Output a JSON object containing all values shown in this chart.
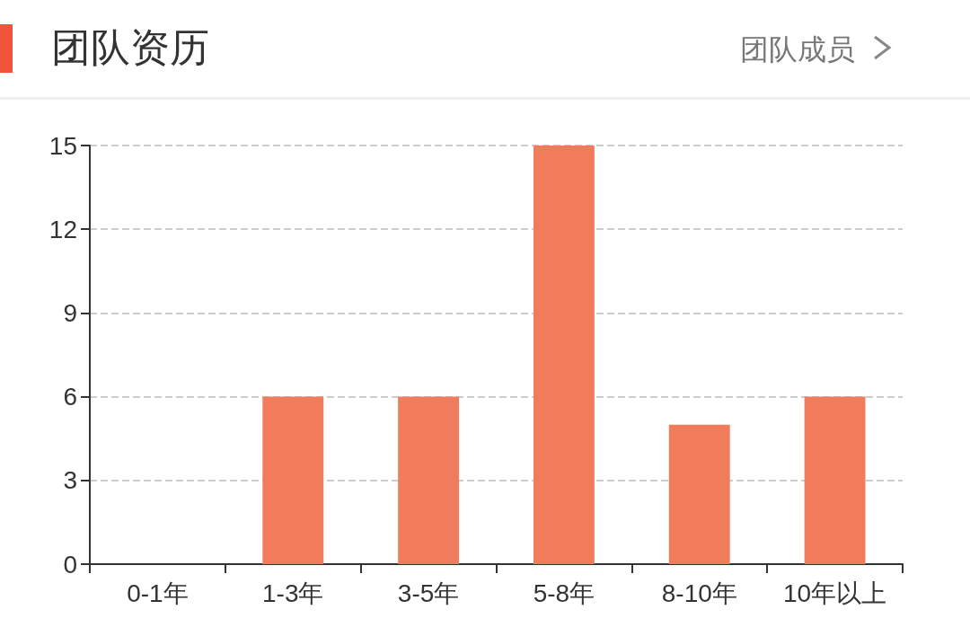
{
  "chart_data": {
    "type": "bar",
    "title": "团队资历",
    "annotations": [
      "团队成员"
    ],
    "categories": [
      "0-1年",
      "1-3年",
      "3-5年",
      "5-8年",
      "8-10年",
      "10年以上"
    ],
    "values": [
      0,
      6,
      6,
      15,
      5,
      6
    ],
    "color": "#f07c5c",
    "ylim": [
      0,
      15
    ],
    "yticks": [
      0,
      3,
      6,
      9,
      12,
      15
    ],
    "grid": "y"
  }
}
